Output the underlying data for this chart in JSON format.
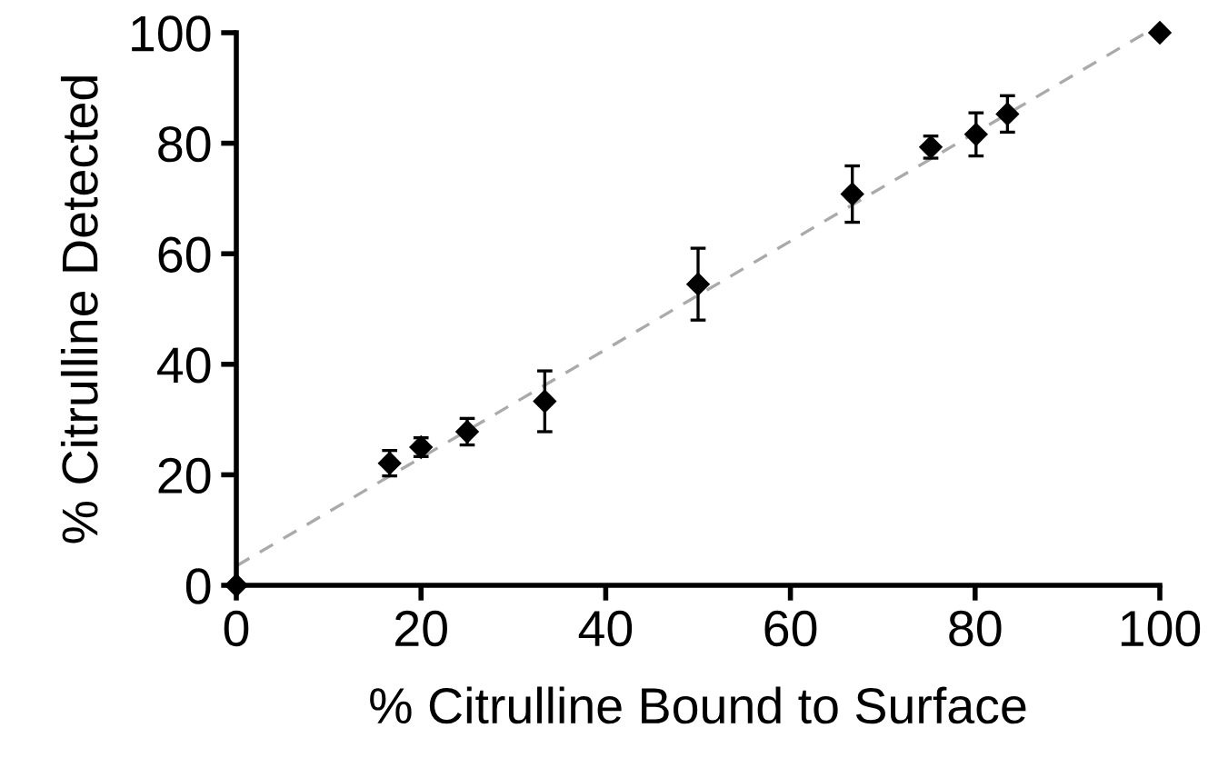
{
  "chart_data": {
    "type": "scatter",
    "xlabel": "% Citrulline Bound to Surface",
    "ylabel": "% Citrulline Detected",
    "xlim": [
      0,
      100
    ],
    "ylim": [
      0,
      100
    ],
    "xticks": [
      0,
      20,
      40,
      60,
      80,
      100
    ],
    "yticks": [
      0,
      20,
      40,
      60,
      80,
      100
    ],
    "grid": false,
    "series": [
      {
        "type": "line",
        "color": "#aaaaaa",
        "line_style": "dashed",
        "marker": "none",
        "x": [
          0,
          98.5
        ],
        "values": [
          3.5,
          100
        ]
      },
      {
        "color": "#000000",
        "marker": "diamond",
        "x": [
          0,
          16.6,
          20,
          25,
          33.4,
          50,
          66.7,
          75.2,
          80.1,
          83.5,
          100
        ],
        "values": [
          0,
          22.1,
          25.0,
          27.8,
          33.3,
          54.5,
          70.8,
          79.3,
          81.6,
          85.3,
          100
        ],
        "errors": [
          null,
          2.3,
          1.7,
          2.4,
          5.5,
          6.5,
          5.1,
          2.0,
          3.9,
          3.3,
          null
        ]
      }
    ]
  }
}
